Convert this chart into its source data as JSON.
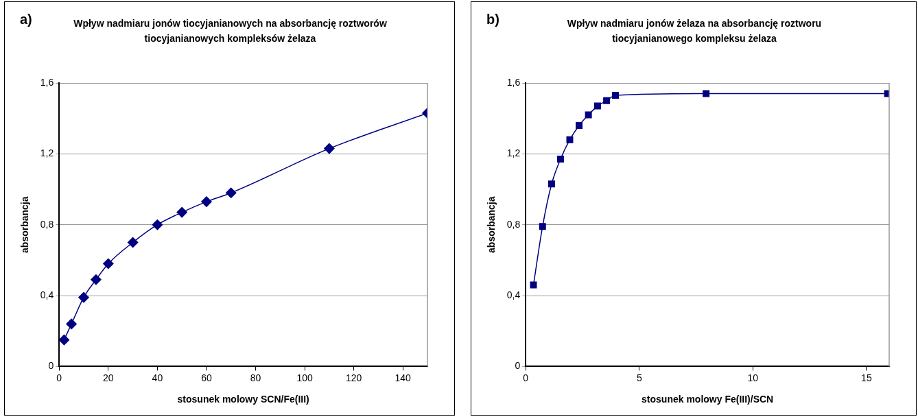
{
  "chart_data": [
    {
      "type": "line",
      "title": "Wpływ nadmiaru jonów tiocyjanianowych na absorbancję roztworów tiocyjanianowych kompleksów żelaza",
      "annotations": [
        "a)"
      ],
      "xlabel": "stosunek molowy SCN/Fe(III)",
      "ylabel": "absorbancja",
      "x": [
        2,
        5,
        10,
        15,
        20,
        30,
        40,
        50,
        60,
        70,
        110,
        150
      ],
      "series": [
        {
          "color": "#000080",
          "values": [
            0.15,
            0.24,
            0.39,
            0.49,
            0.58,
            0.7,
            0.8,
            0.87,
            0.93,
            0.98,
            1.23,
            1.43
          ]
        }
      ],
      "xlim": [
        0,
        150
      ],
      "xticks": [
        0,
        20,
        40,
        60,
        80,
        100,
        120,
        140
      ],
      "ylim": [
        0,
        1.6
      ],
      "yticks": [
        0,
        {
          "value": 0.4,
          "label": "0,4"
        },
        {
          "value": 0.8,
          "label": "0,8"
        },
        {
          "value": 1.2,
          "label": "1,2"
        },
        {
          "value": 1.6,
          "label": "1,6"
        }
      ],
      "grid": "y",
      "legend": false,
      "marker": "diamond",
      "line_style": "solid"
    },
    {
      "type": "line",
      "title": "Wpływ nadmiaru jonów żelaza na absorbancję roztworu tiocyjanianowego kompleksu żelaza",
      "annotations": [
        "b)"
      ],
      "xlabel": "stosunek molowy Fe(III)/SCN",
      "ylabel": "absorbancja",
      "x": [
        0.34,
        0.74,
        1.14,
        1.53,
        1.94,
        2.35,
        2.76,
        3.16,
        3.56,
        3.95,
        7.94,
        15.93
      ],
      "series": [
        {
          "color": "#000080",
          "values": [
            0.46,
            0.79,
            1.03,
            1.17,
            1.28,
            1.36,
            1.42,
            1.47,
            1.5,
            1.53,
            1.54,
            1.54
          ]
        }
      ],
      "xlim": [
        0,
        16
      ],
      "xticks": [
        0,
        5,
        10,
        15
      ],
      "ylim": [
        0,
        1.6
      ],
      "yticks": [
        0,
        {
          "value": 0.4,
          "label": "0,4"
        },
        {
          "value": 0.8,
          "label": "0,8"
        },
        {
          "value": 1.2,
          "label": "1,2"
        },
        {
          "value": 1.6,
          "label": "1,6"
        }
      ],
      "grid": "y",
      "legend": false,
      "marker": "square",
      "line_style": "solid"
    }
  ]
}
